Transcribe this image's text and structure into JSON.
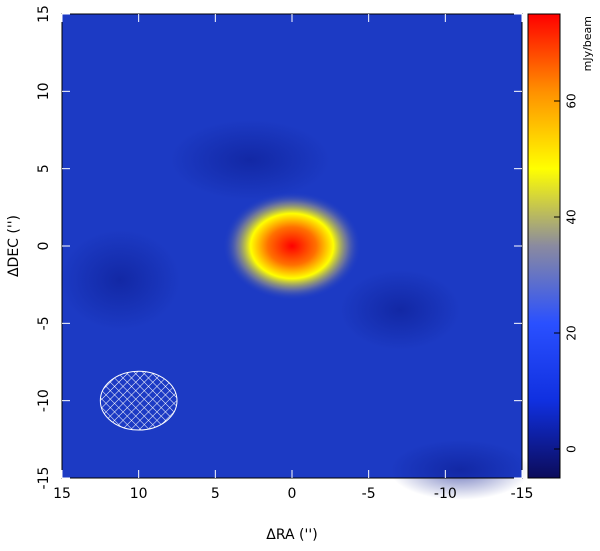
{
  "chart_data": {
    "type": "image",
    "xlabel": "ΔRA ('')",
    "ylabel": "ΔDEC ('')",
    "xlim": [
      15,
      -15
    ],
    "ylim": [
      -15,
      15
    ],
    "xticks": [
      15,
      10,
      5,
      0,
      -5,
      -10,
      -15
    ],
    "yticks": [
      -15,
      -10,
      -5,
      0,
      5,
      10,
      15
    ],
    "colorbar_label": "mJy/beam",
    "clim": [
      -5,
      75
    ],
    "cticks": [
      0,
      20,
      40,
      60
    ],
    "colormap": [
      "#0c0c5a",
      "#1030e0",
      "#2a50ff",
      "#8a8aa0",
      "#ffff00",
      "#ff9000",
      "#ff0000"
    ],
    "source": {
      "x": 0,
      "y": 0,
      "peak": 72,
      "width": 4.5,
      "height": 3.5
    },
    "beam": {
      "x": 10,
      "y": -10,
      "major": 5,
      "minor": 3.8
    }
  }
}
